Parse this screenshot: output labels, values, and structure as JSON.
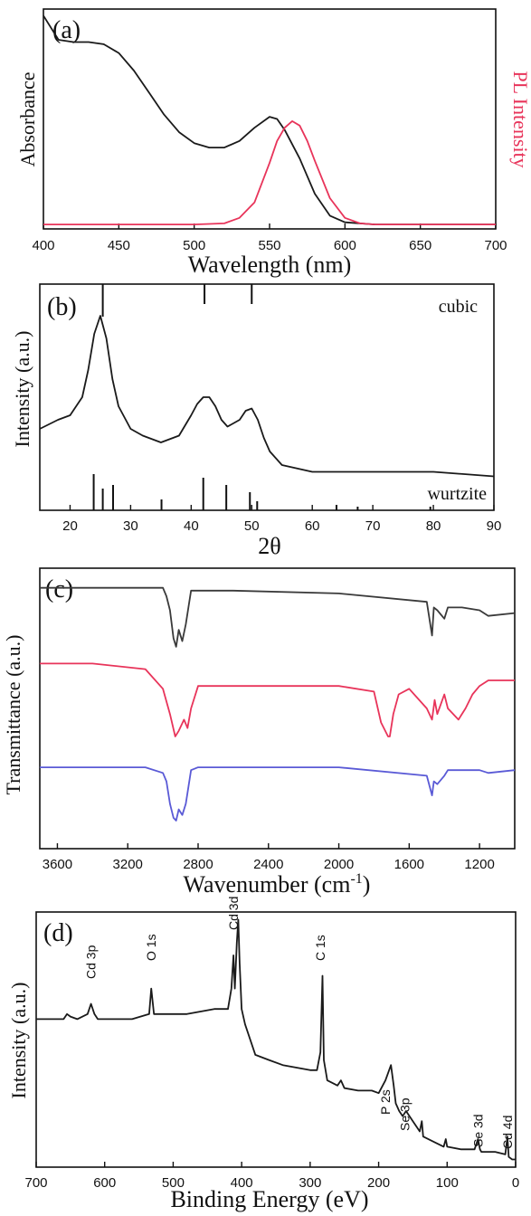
{
  "panels": {
    "a": {
      "tag": "(a)",
      "ylabel_left": "Absorbance",
      "ylabel_right": "PL Intensity",
      "xlabel": "Wavelength (nm)"
    },
    "b": {
      "tag": "(b)",
      "ylabel": "Intensity (a.u.)",
      "xlabel": "2θ",
      "label_top": "cubic",
      "label_bottom": "wurtzite"
    },
    "c": {
      "tag": "(c)",
      "ylabel": "Transmittance (a.u.)",
      "xlabel": "Wavenumber (cm",
      "xlabel_sup": "-1",
      "xlabel_end": ")"
    },
    "d": {
      "tag": "(d)",
      "ylabel": "Intensity (a.u.)",
      "xlabel": "Binding Energy (eV)"
    }
  },
  "colors": {
    "black": "#1a1a1a",
    "red": "#e8345a",
    "blue": "#5a5ad6",
    "gray": "#3a3a3a"
  },
  "chart_data": [
    {
      "type": "line",
      "xlim": [
        400,
        700
      ],
      "xticks": [
        "400",
        "450",
        "500",
        "550",
        "600",
        "650",
        "700"
      ],
      "series": [
        {
          "color": "#1a1a1a",
          "x": [
            400,
            410,
            420,
            430,
            440,
            450,
            460,
            470,
            480,
            490,
            500,
            510,
            520,
            530,
            540,
            550,
            555,
            560,
            570,
            580,
            590,
            600,
            620,
            650,
            700
          ],
          "y": [
            0.97,
            0.86,
            0.85,
            0.85,
            0.84,
            0.8,
            0.72,
            0.62,
            0.52,
            0.44,
            0.39,
            0.37,
            0.37,
            0.4,
            0.46,
            0.51,
            0.5,
            0.45,
            0.32,
            0.16,
            0.06,
            0.03,
            0.02,
            0.02,
            0.02
          ]
        },
        {
          "color": "#e8345a",
          "x": [
            400,
            500,
            520,
            530,
            540,
            550,
            555,
            560,
            565,
            570,
            575,
            580,
            590,
            600,
            610,
            620,
            650,
            700
          ],
          "y": [
            0.02,
            0.02,
            0.025,
            0.05,
            0.12,
            0.3,
            0.4,
            0.46,
            0.49,
            0.47,
            0.4,
            0.31,
            0.14,
            0.05,
            0.025,
            0.02,
            0.02,
            0.02
          ]
        }
      ]
    },
    {
      "type": "line",
      "xlim": [
        15,
        90
      ],
      "xticks": [
        "20",
        "30",
        "40",
        "50",
        "60",
        "70",
        "80",
        "90"
      ],
      "series": [
        {
          "color": "#1a1a1a",
          "x": [
            15,
            18,
            20,
            22,
            23,
            24,
            25,
            26,
            27,
            28,
            30,
            32,
            35,
            38,
            40,
            41,
            42,
            43,
            44,
            45,
            46,
            48,
            49,
            50,
            51,
            52,
            53,
            55,
            60,
            70,
            80,
            90
          ],
          "y": [
            0.36,
            0.4,
            0.42,
            0.5,
            0.62,
            0.78,
            0.86,
            0.76,
            0.58,
            0.46,
            0.36,
            0.33,
            0.3,
            0.33,
            0.42,
            0.47,
            0.5,
            0.5,
            0.46,
            0.4,
            0.37,
            0.4,
            0.44,
            0.45,
            0.4,
            0.32,
            0.26,
            0.2,
            0.17,
            0.17,
            0.17,
            0.15
          ]
        }
      ],
      "cubic_ref": [
        25.4,
        42.2,
        50.0
      ],
      "wurtzite_ref": [
        23.9,
        25.4,
        27.1,
        35.1,
        42.0,
        45.8,
        49.7,
        50.9,
        64.0,
        67.5,
        79.5
      ],
      "wurtzite_heights": [
        1,
        0.6,
        0.7,
        0.3,
        0.9,
        0.7,
        0.5,
        0.25,
        0.15,
        0.1,
        0.1
      ]
    },
    {
      "type": "line",
      "xlim": [
        3700,
        1000
      ],
      "xticks": [
        "3600",
        "3200",
        "2800",
        "2400",
        "2000",
        "1600",
        "1200"
      ],
      "series": [
        {
          "color": "#3a3a3a",
          "x": [
            3700,
            3100,
            3000,
            2980,
            2960,
            2940,
            2925,
            2910,
            2890,
            2870,
            2855,
            2840,
            2800,
            2600,
            2000,
            1500,
            1470,
            1460,
            1440,
            1400,
            1380,
            1300,
            1200,
            1150,
            1000
          ],
          "y": [
            0.93,
            0.93,
            0.93,
            0.9,
            0.85,
            0.75,
            0.72,
            0.78,
            0.74,
            0.8,
            0.86,
            0.92,
            0.92,
            0.92,
            0.91,
            0.88,
            0.76,
            0.86,
            0.85,
            0.82,
            0.86,
            0.86,
            0.85,
            0.83,
            0.84
          ]
        },
        {
          "color": "#e8345a",
          "x": [
            3700,
            3400,
            3100,
            3000,
            2960,
            2930,
            2910,
            2880,
            2860,
            2840,
            2800,
            2700,
            2500,
            2000,
            1800,
            1760,
            1720,
            1710,
            1690,
            1660,
            1600,
            1500,
            1470,
            1455,
            1440,
            1400,
            1380,
            1320,
            1280,
            1240,
            1200,
            1150,
            1000
          ],
          "y": [
            0.66,
            0.66,
            0.64,
            0.57,
            0.48,
            0.4,
            0.42,
            0.46,
            0.43,
            0.5,
            0.58,
            0.58,
            0.58,
            0.58,
            0.56,
            0.45,
            0.4,
            0.4,
            0.48,
            0.55,
            0.57,
            0.5,
            0.46,
            0.53,
            0.48,
            0.55,
            0.5,
            0.46,
            0.5,
            0.55,
            0.58,
            0.6,
            0.6
          ]
        },
        {
          "color": "#5a5ad6",
          "x": [
            3700,
            3100,
            3000,
            2980,
            2960,
            2940,
            2925,
            2910,
            2890,
            2870,
            2855,
            2840,
            2800,
            2600,
            2000,
            1500,
            1470,
            1460,
            1440,
            1400,
            1380,
            1300,
            1200,
            1150,
            1000
          ],
          "y": [
            0.29,
            0.29,
            0.27,
            0.24,
            0.16,
            0.11,
            0.1,
            0.14,
            0.12,
            0.16,
            0.22,
            0.28,
            0.29,
            0.29,
            0.29,
            0.26,
            0.19,
            0.24,
            0.23,
            0.26,
            0.28,
            0.28,
            0.28,
            0.27,
            0.28
          ]
        }
      ]
    },
    {
      "type": "line",
      "xlim": [
        700,
        0
      ],
      "xticks": [
        "700",
        "600",
        "500",
        "400",
        "300",
        "200",
        "100",
        "0"
      ],
      "series": [
        {
          "color": "#1a1a1a",
          "x": [
            700,
            660,
            655,
            650,
            640,
            625,
            620,
            615,
            610,
            600,
            560,
            535,
            532,
            528,
            520,
            480,
            440,
            420,
            415,
            412,
            410,
            407,
            405,
            403,
            400,
            395,
            380,
            360,
            340,
            300,
            290,
            285,
            282,
            280,
            275,
            260,
            255,
            250,
            230,
            210,
            200,
            190,
            182,
            178,
            175,
            170,
            165,
            160,
            150,
            140,
            137,
            135,
            120,
            105,
            102,
            100,
            80,
            60,
            55,
            52,
            50,
            30,
            15,
            12,
            10,
            5,
            0
          ],
          "y": [
            0.58,
            0.58,
            0.6,
            0.59,
            0.58,
            0.6,
            0.64,
            0.6,
            0.58,
            0.58,
            0.58,
            0.6,
            0.7,
            0.6,
            0.6,
            0.6,
            0.62,
            0.62,
            0.7,
            0.83,
            0.7,
            0.88,
            0.97,
            0.8,
            0.62,
            0.56,
            0.44,
            0.42,
            0.4,
            0.38,
            0.38,
            0.45,
            0.75,
            0.42,
            0.34,
            0.32,
            0.34,
            0.31,
            0.3,
            0.3,
            0.29,
            0.34,
            0.4,
            0.32,
            0.25,
            0.22,
            0.2,
            0.22,
            0.18,
            0.14,
            0.18,
            0.12,
            0.1,
            0.08,
            0.11,
            0.08,
            0.07,
            0.07,
            0.11,
            0.07,
            0.06,
            0.06,
            0.05,
            0.12,
            0.04,
            0.03,
            0.03
          ]
        }
      ],
      "annotations": [
        {
          "text": "Cd 3p",
          "x": 620
        },
        {
          "text": "O 1s",
          "x": 532
        },
        {
          "text": "Cd 3d",
          "x": 412
        },
        {
          "text": "C 1s",
          "x": 285
        },
        {
          "text": "P 2s",
          "x": 190
        },
        {
          "text": "Se 3p",
          "x": 162
        },
        {
          "text": "Se 3d",
          "x": 55
        },
        {
          "text": "Cd 4d",
          "x": 12
        }
      ]
    }
  ]
}
